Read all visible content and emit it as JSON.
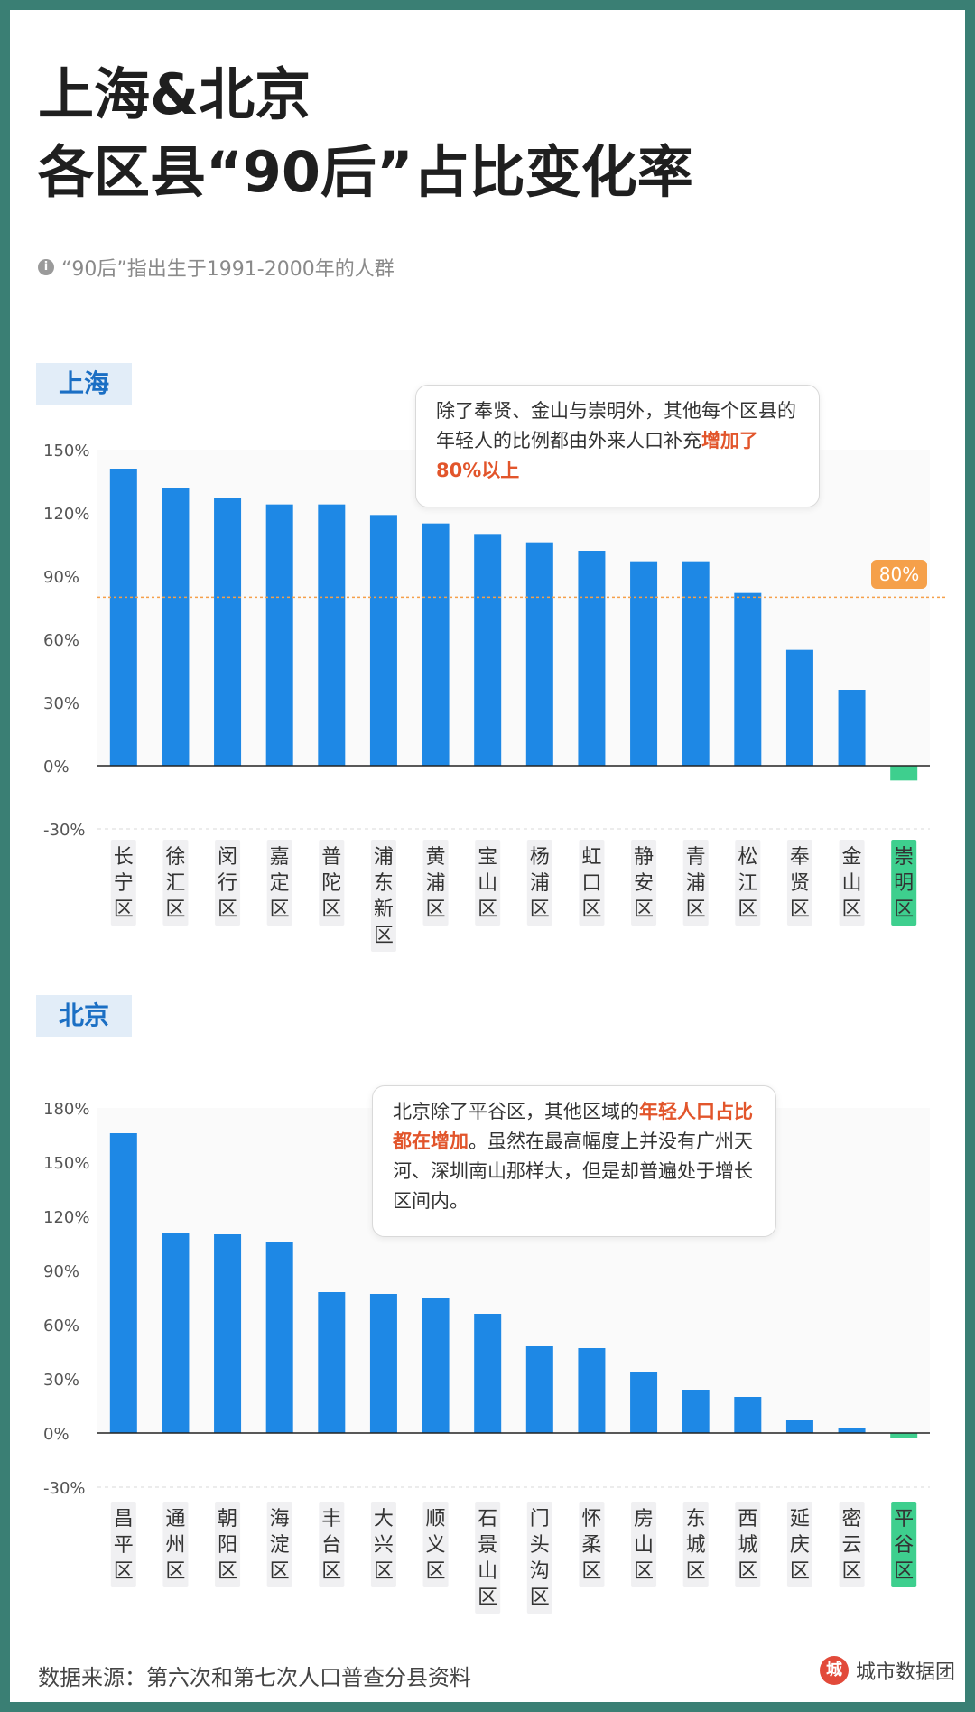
{
  "title_line1": "上海&北京",
  "title_line2": "各区县“90后”占比变化率",
  "note_icon": "i",
  "note": "“90后”指出生于1991-2000年的人群",
  "colors": {
    "bar": "#1e88e5",
    "negative": "#3ecf8e",
    "reference": "#f5a04a",
    "highlight": "#e2552b"
  },
  "shanghai": {
    "tag": "上海",
    "callout_pre": "除了奉贤、金山与崇明外，其他每个区县的年轻人的比例都由外来人口补充",
    "callout_hl": "增加了80%以上",
    "ref_label": "80%"
  },
  "beijing": {
    "tag": "北京",
    "callout_pre": "北京除了平谷区，其他区域的",
    "callout_hl": "年轻人口占比都在增加",
    "callout_post": "。虽然在最高幅度上并没有广州天河、深圳南山那样大，但是却普遍处于增长区间内。"
  },
  "footer": "数据来源：第六次和第七次人口普查分县资料",
  "brand_icon": "城",
  "brand": "城市数据团",
  "chart_data": [
    {
      "type": "bar",
      "title": "上海",
      "categories": [
        "长宁区",
        "徐汇区",
        "闵行区",
        "嘉定区",
        "普陀区",
        "浦东新区",
        "黄浦区",
        "宝山区",
        "杨浦区",
        "虹口区",
        "静安区",
        "青浦区",
        "松江区",
        "奉贤区",
        "金山区",
        "崇明区"
      ],
      "values": [
        141,
        132,
        127,
        124,
        124,
        119,
        115,
        110,
        106,
        102,
        97,
        97,
        82,
        55,
        36,
        -7
      ],
      "yticks": [
        "150%",
        "120%",
        "90%",
        "60%",
        "30%",
        "0%",
        "-30%"
      ],
      "ylim": [
        -30,
        150
      ],
      "reference_line": 80,
      "reference_label": "80%"
    },
    {
      "type": "bar",
      "title": "北京",
      "categories": [
        "昌平区",
        "通州区",
        "朝阳区",
        "海淀区",
        "丰台区",
        "大兴区",
        "顺义区",
        "石景山区",
        "门头沟区",
        "怀柔区",
        "房山区",
        "东城区",
        "西城区",
        "延庆区",
        "密云区",
        "平谷区"
      ],
      "values": [
        166,
        111,
        110,
        106,
        78,
        77,
        75,
        66,
        48,
        47,
        34,
        24,
        20,
        7,
        3,
        -3
      ],
      "yticks": [
        "180%",
        "150%",
        "120%",
        "90%",
        "60%",
        "30%",
        "0%",
        "-30%"
      ],
      "ylim": [
        -30,
        180
      ]
    }
  ]
}
